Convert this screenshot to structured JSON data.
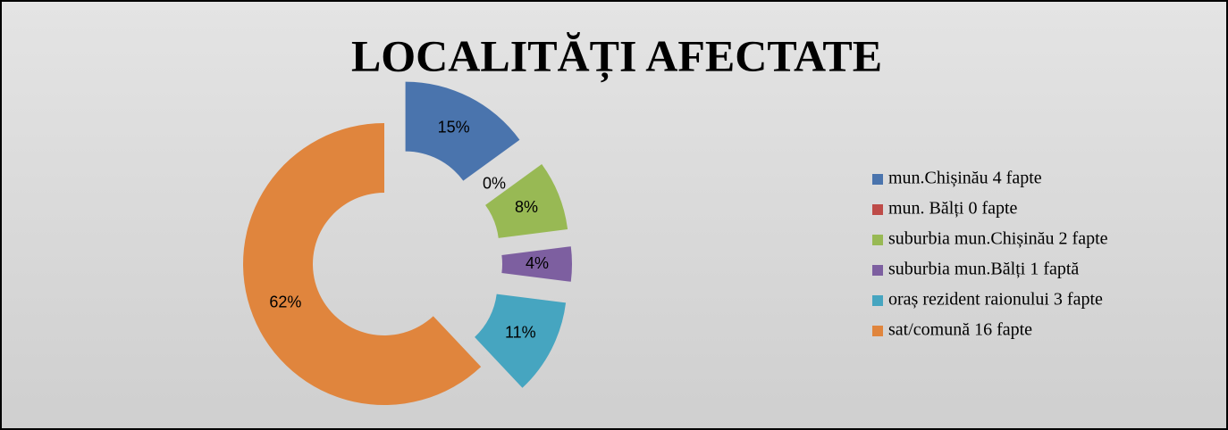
{
  "chart_data": {
    "type": "donut",
    "title": "LOCALITĂȚI AFECTATE",
    "categories": [
      "mun.Chișinău 4 fapte",
      "mun. Bălți 0 fapte",
      "suburbia mun.Chișinău 2 fapte",
      "suburbia mun.Bălți 1 faptă",
      "oraș rezident raionului 3 fapte",
      "sat/comună 16 fapte"
    ],
    "values": [
      15,
      0,
      8,
      4,
      11,
      62
    ],
    "value_labels": [
      "15%",
      "0%",
      "8%",
      "4%",
      "11%",
      "62%"
    ],
    "colors": [
      "#4a74ad",
      "#be4b48",
      "#98b954",
      "#7d5fa0",
      "#46a5c0",
      "#e0853d"
    ],
    "explode": [
      true,
      true,
      true,
      true,
      true,
      false
    ],
    "legend": "right"
  }
}
